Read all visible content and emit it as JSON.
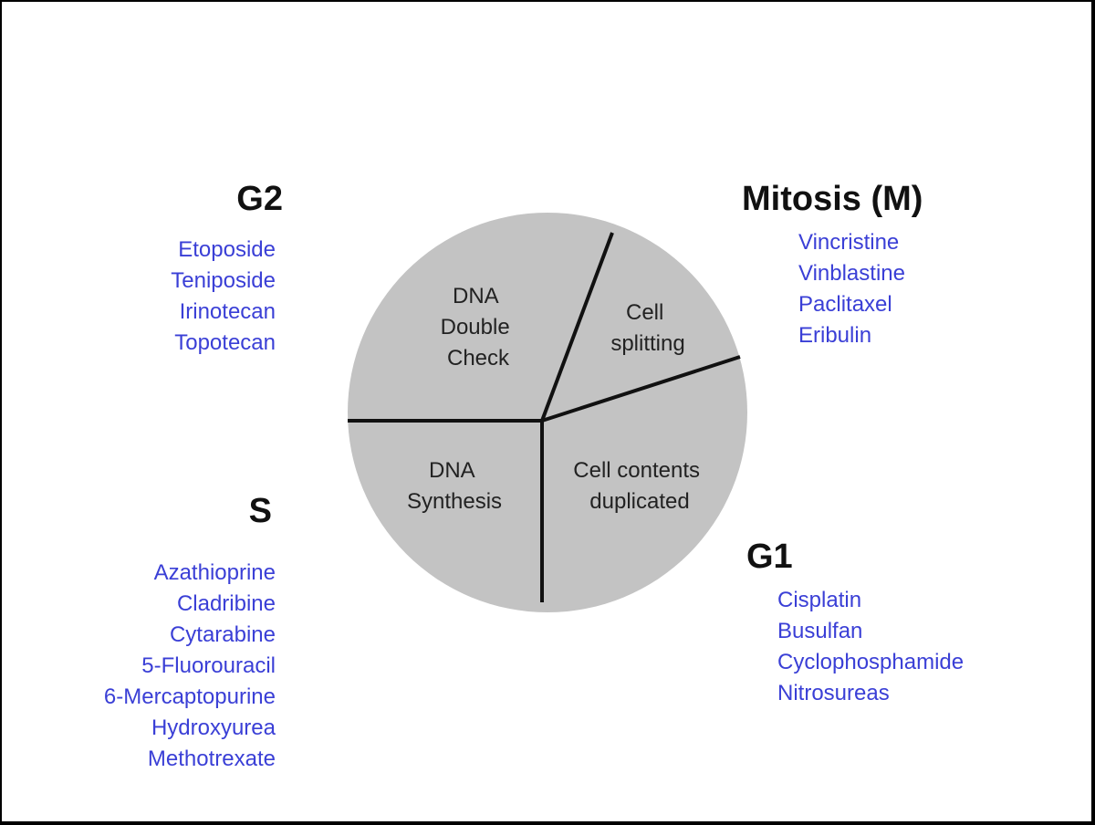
{
  "diagram": {
    "segments": {
      "g2": {
        "lines": [
          "DNA",
          "Double",
          "Check"
        ]
      },
      "mitosis": {
        "lines": [
          "Cell",
          "splitting"
        ]
      },
      "g1": {
        "lines": [
          "Cell contents",
          "duplicated"
        ]
      },
      "s": {
        "lines": [
          "DNA",
          "Synthesis"
        ]
      }
    }
  },
  "phases": {
    "g2": {
      "title": "G2",
      "drugs": [
        "Etoposide",
        "Teniposide",
        "Irinotecan",
        "Topotecan"
      ]
    },
    "mitosis": {
      "title": "Mitosis (M)",
      "drugs": [
        "Vincristine",
        "Vinblastine",
        "Paclitaxel",
        "Eribulin"
      ]
    },
    "s": {
      "title": "S",
      "drugs": [
        "Azathioprine",
        "Cladribine",
        "Cytarabine",
        "5-Fluorouracil",
        "6-Mercaptopurine",
        "Hydroxyurea",
        "Methotrexate"
      ]
    },
    "g1": {
      "title": "G1",
      "drugs": [
        "Cisplatin",
        "Busulfan",
        "Cyclophosphamide",
        "Nitrosureas"
      ]
    }
  },
  "colors": {
    "circle_fill": "#c3c3c3",
    "divider": "#111111",
    "drug_text": "#3a3fd6",
    "title_text": "#111111"
  }
}
